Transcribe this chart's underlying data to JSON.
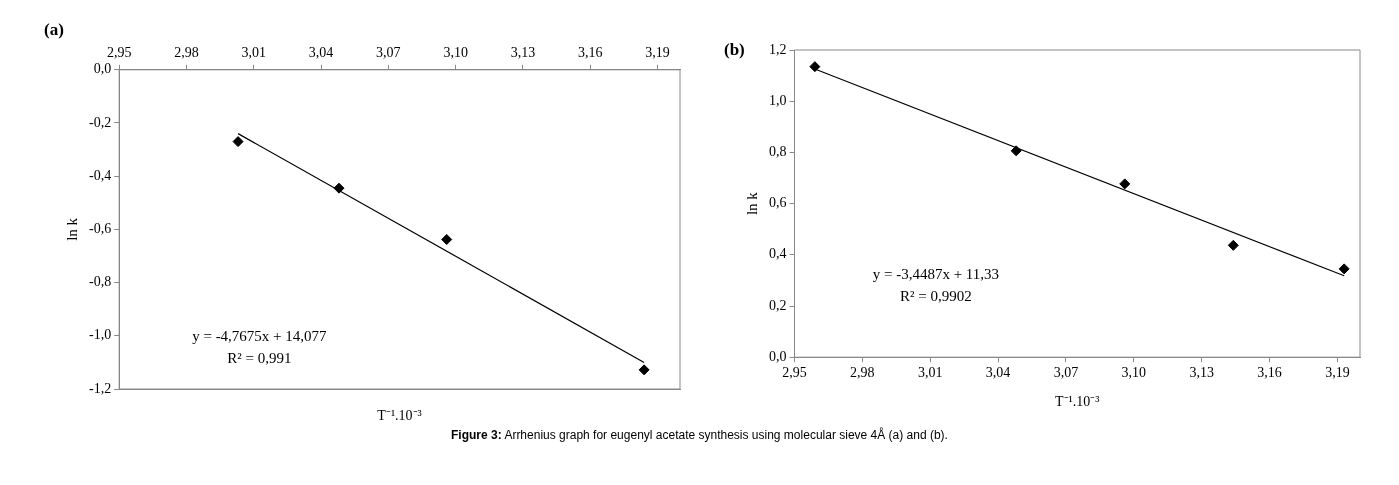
{
  "chart_data": [
    {
      "type": "scatter",
      "title": "(a)",
      "xlabel": "T⁻¹.10⁻³",
      "ylabel": "ln k",
      "marker": "diamond",
      "xlim": [
        2.95,
        3.2
      ],
      "x2lim": [
        2.95,
        3.2
      ],
      "x2ticks": [
        {
          "value": 2.95,
          "label": "2,95"
        },
        {
          "value": 2.98,
          "label": "2,98"
        },
        {
          "value": 3.01,
          "label": "3,01"
        },
        {
          "value": 3.04,
          "label": "3,04"
        },
        {
          "value": 3.07,
          "label": "3,07"
        },
        {
          "value": 3.1,
          "label": "3,10"
        },
        {
          "value": 3.13,
          "label": "3,13"
        },
        {
          "value": 3.16,
          "label": "3,16"
        },
        {
          "value": 3.19,
          "label": "3,19"
        }
      ],
      "ylim": [
        -1.2,
        0
      ],
      "yticks": [
        {
          "value": -1.2,
          "label": "-1,2"
        },
        {
          "value": -1.0,
          "label": "-1,0"
        },
        {
          "value": -0.8,
          "label": "-0,8"
        },
        {
          "value": -0.6,
          "label": "-0,6"
        },
        {
          "value": -0.4,
          "label": "-0,4"
        },
        {
          "value": -0.2,
          "label": "-0,2"
        },
        {
          "value": 0,
          "label": "0,0"
        }
      ],
      "x": [
        3.003,
        3.048,
        3.096,
        3.184
      ],
      "series": [
        {
          "type": "scatter",
          "color": "#000000",
          "values": [
            -0.27,
            -0.445,
            -0.638,
            -1.128
          ]
        },
        {
          "type": "line",
          "color": "#000000",
          "marker": "none",
          "x": [
            3.003,
            3.184
          ],
          "values": [
            -0.24,
            -1.1
          ]
        }
      ],
      "annotations": [
        "y = -4,7675x + 14,077",
        "R² = 0,991"
      ]
    },
    {
      "type": "scatter",
      "title": "(b)",
      "xlabel": "T⁻¹.10⁻³",
      "ylabel": "ln k",
      "marker": "diamond",
      "xlim": [
        2.95,
        3.2
      ],
      "xticks": [
        {
          "value": 2.95,
          "label": "2,95"
        },
        {
          "value": 2.98,
          "label": "2,98"
        },
        {
          "value": 3.01,
          "label": "3,01"
        },
        {
          "value": 3.04,
          "label": "3,04"
        },
        {
          "value": 3.07,
          "label": "3,07"
        },
        {
          "value": 3.1,
          "label": "3,10"
        },
        {
          "value": 3.13,
          "label": "3,13"
        },
        {
          "value": 3.16,
          "label": "3,16"
        },
        {
          "value": 3.19,
          "label": "3,19"
        }
      ],
      "ylim": [
        0,
        1.2
      ],
      "yticks": [
        {
          "value": 0,
          "label": "0,0"
        },
        {
          "value": 0.2,
          "label": "0,2"
        },
        {
          "value": 0.4,
          "label": "0,4"
        },
        {
          "value": 0.6,
          "label": "0,6"
        },
        {
          "value": 0.8,
          "label": "0,8"
        },
        {
          "value": 1.0,
          "label": "1,0"
        },
        {
          "value": 1.2,
          "label": "1,2"
        }
      ],
      "x": [
        2.959,
        3.048,
        3.096,
        3.144,
        3.193
      ],
      "series": [
        {
          "type": "scatter",
          "color": "#000000",
          "values": [
            1.135,
            0.806,
            0.677,
            0.437,
            0.345
          ]
        },
        {
          "type": "line",
          "color": "#000000",
          "marker": "none",
          "x": [
            2.959,
            3.193
          ],
          "values": [
            1.126,
            0.318
          ]
        }
      ],
      "annotations": [
        "y = -3,4487x + 11,33",
        "R² = 0,9902",
        "Figure 3: Arrhenius graph for eugenyl acetate synthesis using molecular sieve 4Å (a) and (b)."
      ]
    }
  ]
}
